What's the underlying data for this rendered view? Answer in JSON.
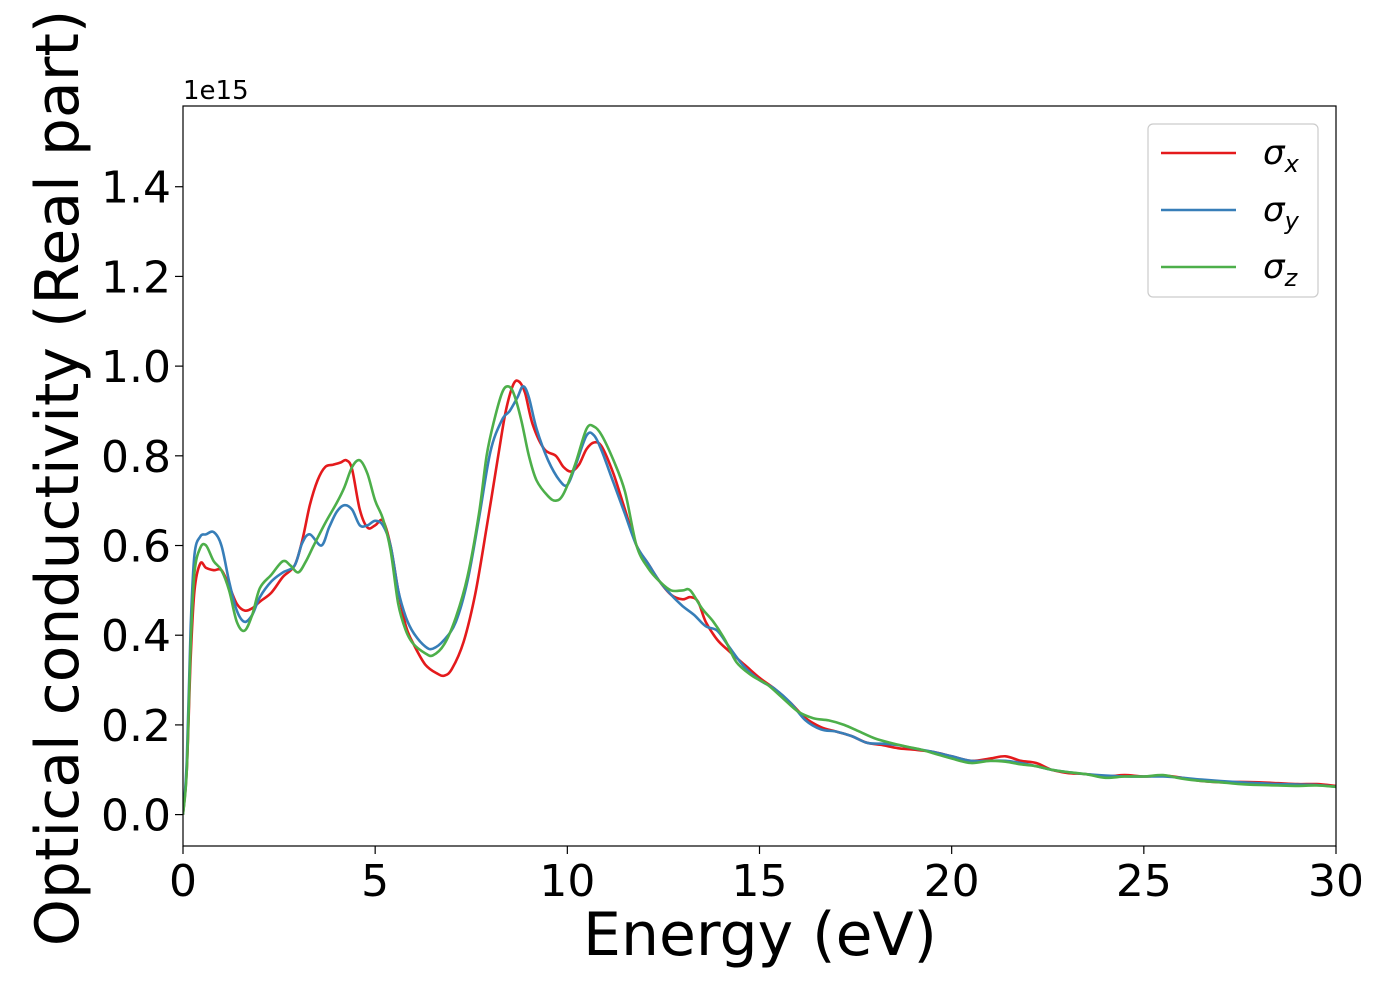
{
  "chart_data": {
    "type": "line",
    "title": "",
    "xlabel": "Energy (eV)",
    "ylabel": "Optical conductivity (Real part)",
    "y_offset_label": "1e15",
    "xlim": [
      0,
      30
    ],
    "ylim": [
      -0.07,
      1.58
    ],
    "xticks": [
      0,
      5,
      10,
      15,
      20,
      25,
      30
    ],
    "xtick_labels": [
      "0",
      "5",
      "10",
      "15",
      "20",
      "25",
      "30"
    ],
    "yticks": [
      0.0,
      0.2,
      0.4,
      0.6,
      0.8,
      1.0,
      1.2,
      1.4
    ],
    "ytick_labels": [
      "0.0",
      "0.2",
      "0.4",
      "0.6",
      "0.8",
      "1.0",
      "1.2",
      "1.4"
    ],
    "grid": false,
    "legend_position": "top-right",
    "series": [
      {
        "name": "σx",
        "label_base": "σ",
        "label_sub": "x",
        "color": "#e41a1c",
        "points": [
          [
            0,
            0
          ],
          [
            0.1,
            0.1
          ],
          [
            0.2,
            0.35
          ],
          [
            0.3,
            0.5
          ],
          [
            0.45,
            0.56
          ],
          [
            0.6,
            0.55
          ],
          [
            0.8,
            0.545
          ],
          [
            1.0,
            0.545
          ],
          [
            1.2,
            0.51
          ],
          [
            1.4,
            0.47
          ],
          [
            1.6,
            0.455
          ],
          [
            1.8,
            0.46
          ],
          [
            2.0,
            0.475
          ],
          [
            2.3,
            0.495
          ],
          [
            2.6,
            0.53
          ],
          [
            2.9,
            0.555
          ],
          [
            3.1,
            0.61
          ],
          [
            3.3,
            0.69
          ],
          [
            3.5,
            0.745
          ],
          [
            3.7,
            0.775
          ],
          [
            3.9,
            0.78
          ],
          [
            4.1,
            0.785
          ],
          [
            4.25,
            0.79
          ],
          [
            4.4,
            0.77
          ],
          [
            4.6,
            0.68
          ],
          [
            4.8,
            0.64
          ],
          [
            5.0,
            0.645
          ],
          [
            5.2,
            0.655
          ],
          [
            5.4,
            0.6
          ],
          [
            5.6,
            0.5
          ],
          [
            5.8,
            0.42
          ],
          [
            6.0,
            0.38
          ],
          [
            6.3,
            0.335
          ],
          [
            6.6,
            0.315
          ],
          [
            6.8,
            0.31
          ],
          [
            7.0,
            0.325
          ],
          [
            7.3,
            0.385
          ],
          [
            7.6,
            0.49
          ],
          [
            7.9,
            0.64
          ],
          [
            8.2,
            0.8
          ],
          [
            8.4,
            0.9
          ],
          [
            8.6,
            0.96
          ],
          [
            8.75,
            0.965
          ],
          [
            8.9,
            0.94
          ],
          [
            9.1,
            0.87
          ],
          [
            9.4,
            0.815
          ],
          [
            9.7,
            0.8
          ],
          [
            9.9,
            0.775
          ],
          [
            10.1,
            0.765
          ],
          [
            10.3,
            0.78
          ],
          [
            10.5,
            0.815
          ],
          [
            10.7,
            0.83
          ],
          [
            10.9,
            0.82
          ],
          [
            11.2,
            0.76
          ],
          [
            11.5,
            0.68
          ],
          [
            11.8,
            0.6
          ],
          [
            12.1,
            0.56
          ],
          [
            12.4,
            0.52
          ],
          [
            12.7,
            0.49
          ],
          [
            13.0,
            0.48
          ],
          [
            13.2,
            0.485
          ],
          [
            13.4,
            0.475
          ],
          [
            13.6,
            0.43
          ],
          [
            13.9,
            0.39
          ],
          [
            14.2,
            0.365
          ],
          [
            14.6,
            0.335
          ],
          [
            15.0,
            0.305
          ],
          [
            15.4,
            0.28
          ],
          [
            15.8,
            0.25
          ],
          [
            16.2,
            0.215
          ],
          [
            16.6,
            0.195
          ],
          [
            17.0,
            0.185
          ],
          [
            17.4,
            0.175
          ],
          [
            17.8,
            0.16
          ],
          [
            18.2,
            0.155
          ],
          [
            18.6,
            0.148
          ],
          [
            19.0,
            0.145
          ],
          [
            19.5,
            0.14
          ],
          [
            20.0,
            0.13
          ],
          [
            20.5,
            0.12
          ],
          [
            21.0,
            0.125
          ],
          [
            21.4,
            0.13
          ],
          [
            21.8,
            0.12
          ],
          [
            22.2,
            0.115
          ],
          [
            22.6,
            0.1
          ],
          [
            23.0,
            0.093
          ],
          [
            23.5,
            0.09
          ],
          [
            24.0,
            0.085
          ],
          [
            24.5,
            0.088
          ],
          [
            25.0,
            0.085
          ],
          [
            25.5,
            0.087
          ],
          [
            26.0,
            0.082
          ],
          [
            26.5,
            0.075
          ],
          [
            27.0,
            0.072
          ],
          [
            27.5,
            0.073
          ],
          [
            28.0,
            0.072
          ],
          [
            28.5,
            0.07
          ],
          [
            29.0,
            0.068
          ],
          [
            29.5,
            0.068
          ],
          [
            30.0,
            0.064
          ]
        ]
      },
      {
        "name": "σy",
        "label_base": "σ",
        "label_sub": "y",
        "color": "#377eb8",
        "points": [
          [
            0,
            0
          ],
          [
            0.1,
            0.12
          ],
          [
            0.2,
            0.42
          ],
          [
            0.3,
            0.58
          ],
          [
            0.45,
            0.62
          ],
          [
            0.6,
            0.625
          ],
          [
            0.8,
            0.63
          ],
          [
            1.0,
            0.6
          ],
          [
            1.2,
            0.52
          ],
          [
            1.4,
            0.455
          ],
          [
            1.6,
            0.43
          ],
          [
            1.8,
            0.445
          ],
          [
            2.0,
            0.485
          ],
          [
            2.3,
            0.52
          ],
          [
            2.6,
            0.54
          ],
          [
            2.9,
            0.555
          ],
          [
            3.1,
            0.605
          ],
          [
            3.3,
            0.625
          ],
          [
            3.6,
            0.6
          ],
          [
            3.8,
            0.64
          ],
          [
            4.0,
            0.675
          ],
          [
            4.2,
            0.69
          ],
          [
            4.4,
            0.68
          ],
          [
            4.6,
            0.645
          ],
          [
            4.8,
            0.645
          ],
          [
            5.0,
            0.655
          ],
          [
            5.2,
            0.645
          ],
          [
            5.4,
            0.6
          ],
          [
            5.6,
            0.5
          ],
          [
            5.8,
            0.44
          ],
          [
            6.0,
            0.405
          ],
          [
            6.3,
            0.375
          ],
          [
            6.5,
            0.37
          ],
          [
            6.8,
            0.39
          ],
          [
            7.1,
            0.43
          ],
          [
            7.4,
            0.52
          ],
          [
            7.7,
            0.66
          ],
          [
            8.0,
            0.81
          ],
          [
            8.3,
            0.88
          ],
          [
            8.5,
            0.9
          ],
          [
            8.7,
            0.93
          ],
          [
            8.85,
            0.955
          ],
          [
            9.0,
            0.93
          ],
          [
            9.2,
            0.86
          ],
          [
            9.5,
            0.79
          ],
          [
            9.8,
            0.745
          ],
          [
            10.0,
            0.735
          ],
          [
            10.2,
            0.775
          ],
          [
            10.5,
            0.845
          ],
          [
            10.7,
            0.845
          ],
          [
            10.9,
            0.81
          ],
          [
            11.2,
            0.74
          ],
          [
            11.5,
            0.67
          ],
          [
            11.8,
            0.6
          ],
          [
            12.1,
            0.56
          ],
          [
            12.4,
            0.52
          ],
          [
            12.7,
            0.49
          ],
          [
            13.0,
            0.465
          ],
          [
            13.3,
            0.445
          ],
          [
            13.6,
            0.42
          ],
          [
            13.9,
            0.41
          ],
          [
            14.2,
            0.375
          ],
          [
            14.6,
            0.33
          ],
          [
            15.0,
            0.3
          ],
          [
            15.4,
            0.28
          ],
          [
            15.8,
            0.25
          ],
          [
            16.2,
            0.21
          ],
          [
            16.6,
            0.19
          ],
          [
            17.0,
            0.185
          ],
          [
            17.4,
            0.175
          ],
          [
            17.8,
            0.16
          ],
          [
            18.2,
            0.158
          ],
          [
            18.6,
            0.155
          ],
          [
            19.0,
            0.148
          ],
          [
            19.5,
            0.14
          ],
          [
            20.0,
            0.13
          ],
          [
            20.5,
            0.12
          ],
          [
            21.0,
            0.12
          ],
          [
            21.4,
            0.12
          ],
          [
            21.8,
            0.115
          ],
          [
            22.2,
            0.108
          ],
          [
            22.6,
            0.1
          ],
          [
            23.0,
            0.095
          ],
          [
            23.5,
            0.09
          ],
          [
            24.0,
            0.087
          ],
          [
            24.5,
            0.085
          ],
          [
            25.0,
            0.085
          ],
          [
            25.5,
            0.085
          ],
          [
            26.0,
            0.082
          ],
          [
            26.5,
            0.078
          ],
          [
            27.0,
            0.075
          ],
          [
            27.5,
            0.072
          ],
          [
            28.0,
            0.07
          ],
          [
            28.5,
            0.068
          ],
          [
            29.0,
            0.067
          ],
          [
            29.5,
            0.066
          ],
          [
            30.0,
            0.062
          ]
        ]
      },
      {
        "name": "σz",
        "label_base": "σ",
        "label_sub": "z",
        "color": "#4daf4a",
        "points": [
          [
            0,
            0
          ],
          [
            0.1,
            0.1
          ],
          [
            0.2,
            0.38
          ],
          [
            0.3,
            0.54
          ],
          [
            0.45,
            0.595
          ],
          [
            0.6,
            0.6
          ],
          [
            0.8,
            0.565
          ],
          [
            1.0,
            0.545
          ],
          [
            1.2,
            0.5
          ],
          [
            1.4,
            0.43
          ],
          [
            1.6,
            0.41
          ],
          [
            1.8,
            0.445
          ],
          [
            2.0,
            0.505
          ],
          [
            2.3,
            0.535
          ],
          [
            2.6,
            0.565
          ],
          [
            2.8,
            0.555
          ],
          [
            3.0,
            0.54
          ],
          [
            3.2,
            0.565
          ],
          [
            3.4,
            0.6
          ],
          [
            3.7,
            0.65
          ],
          [
            4.0,
            0.695
          ],
          [
            4.2,
            0.73
          ],
          [
            4.4,
            0.775
          ],
          [
            4.6,
            0.79
          ],
          [
            4.8,
            0.76
          ],
          [
            5.0,
            0.7
          ],
          [
            5.2,
            0.66
          ],
          [
            5.4,
            0.59
          ],
          [
            5.6,
            0.47
          ],
          [
            5.8,
            0.41
          ],
          [
            6.0,
            0.38
          ],
          [
            6.3,
            0.36
          ],
          [
            6.5,
            0.355
          ],
          [
            6.8,
            0.38
          ],
          [
            7.1,
            0.44
          ],
          [
            7.4,
            0.53
          ],
          [
            7.7,
            0.67
          ],
          [
            7.9,
            0.8
          ],
          [
            8.1,
            0.88
          ],
          [
            8.3,
            0.94
          ],
          [
            8.45,
            0.955
          ],
          [
            8.6,
            0.94
          ],
          [
            8.8,
            0.88
          ],
          [
            9.0,
            0.8
          ],
          [
            9.2,
            0.745
          ],
          [
            9.5,
            0.71
          ],
          [
            9.7,
            0.7
          ],
          [
            9.9,
            0.715
          ],
          [
            10.2,
            0.78
          ],
          [
            10.5,
            0.86
          ],
          [
            10.7,
            0.865
          ],
          [
            10.9,
            0.845
          ],
          [
            11.2,
            0.79
          ],
          [
            11.5,
            0.72
          ],
          [
            11.8,
            0.6
          ],
          [
            12.1,
            0.55
          ],
          [
            12.4,
            0.52
          ],
          [
            12.7,
            0.5
          ],
          [
            13.0,
            0.5
          ],
          [
            13.2,
            0.5
          ],
          [
            13.5,
            0.46
          ],
          [
            13.8,
            0.43
          ],
          [
            14.1,
            0.39
          ],
          [
            14.4,
            0.34
          ],
          [
            14.8,
            0.31
          ],
          [
            15.2,
            0.29
          ],
          [
            15.6,
            0.26
          ],
          [
            16.0,
            0.23
          ],
          [
            16.4,
            0.215
          ],
          [
            16.8,
            0.21
          ],
          [
            17.2,
            0.2
          ],
          [
            17.6,
            0.185
          ],
          [
            18.0,
            0.17
          ],
          [
            18.4,
            0.16
          ],
          [
            18.8,
            0.152
          ],
          [
            19.2,
            0.145
          ],
          [
            19.6,
            0.135
          ],
          [
            20.0,
            0.125
          ],
          [
            20.5,
            0.115
          ],
          [
            21.0,
            0.12
          ],
          [
            21.4,
            0.118
          ],
          [
            21.8,
            0.112
          ],
          [
            22.2,
            0.108
          ],
          [
            22.6,
            0.1
          ],
          [
            23.0,
            0.095
          ],
          [
            23.5,
            0.09
          ],
          [
            24.0,
            0.082
          ],
          [
            24.5,
            0.085
          ],
          [
            25.0,
            0.085
          ],
          [
            25.5,
            0.088
          ],
          [
            26.0,
            0.08
          ],
          [
            26.5,
            0.075
          ],
          [
            27.0,
            0.072
          ],
          [
            27.5,
            0.068
          ],
          [
            28.0,
            0.066
          ],
          [
            28.5,
            0.065
          ],
          [
            29.0,
            0.064
          ],
          [
            29.5,
            0.065
          ],
          [
            30.0,
            0.062
          ]
        ]
      }
    ]
  }
}
